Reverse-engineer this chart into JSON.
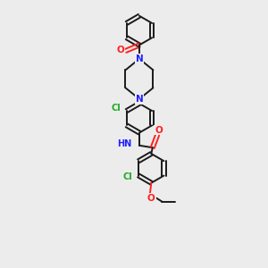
{
  "bg_color": "#ececec",
  "bond_color": "#1a1a1a",
  "n_color": "#2020ff",
  "o_color": "#ff2020",
  "cl_color": "#20aa20",
  "lw": 1.4,
  "dbo": 0.07,
  "r_hex": 0.55,
  "figsize": [
    3.0,
    3.0
  ],
  "dpi": 100,
  "xlim": [
    2.5,
    7.5
  ],
  "ylim": [
    0.2,
    10.2
  ]
}
